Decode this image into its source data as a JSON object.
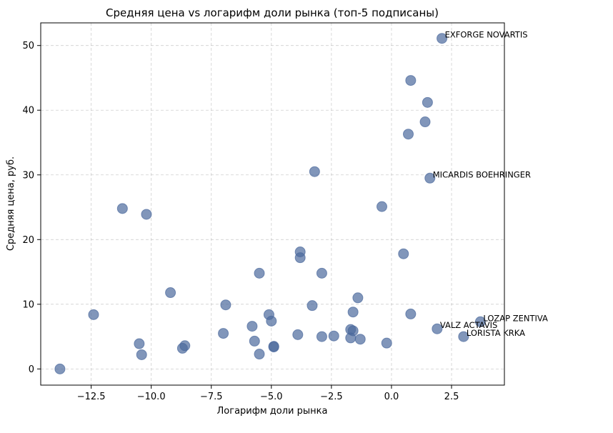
{
  "chart_data": {
    "type": "scatter",
    "title": "Средняя цена vs логарифм доли рынка (топ-5 подписаны)",
    "xlabel": "Логарифм доли рынка",
    "ylabel": "Средняя цена, руб.",
    "xlim": [
      -14.6,
      4.7
    ],
    "ylim": [
      -2.5,
      53.5
    ],
    "xticks": [
      -12.5,
      -10.0,
      -7.5,
      -5.0,
      -2.5,
      0.0,
      2.5
    ],
    "xtick_labels": [
      "−12.5",
      "−10.0",
      "−7.5",
      "−5.0",
      "−2.5",
      "0.0",
      "2.5"
    ],
    "yticks": [
      0,
      10,
      20,
      30,
      40,
      50
    ],
    "ytick_labels": [
      "0",
      "10",
      "20",
      "30",
      "40",
      "50"
    ],
    "grid": true,
    "color": "#4c6a9c",
    "points": [
      {
        "x": -13.8,
        "y": 0.0
      },
      {
        "x": -12.4,
        "y": 8.4
      },
      {
        "x": -11.2,
        "y": 24.8
      },
      {
        "x": -10.5,
        "y": 3.9
      },
      {
        "x": -10.4,
        "y": 2.2
      },
      {
        "x": -10.2,
        "y": 23.9
      },
      {
        "x": -9.2,
        "y": 11.8
      },
      {
        "x": -8.7,
        "y": 3.2
      },
      {
        "x": -8.6,
        "y": 3.6
      },
      {
        "x": -7.0,
        "y": 5.5
      },
      {
        "x": -6.9,
        "y": 9.9
      },
      {
        "x": -5.8,
        "y": 6.6
      },
      {
        "x": -5.7,
        "y": 4.3
      },
      {
        "x": -5.5,
        "y": 14.8
      },
      {
        "x": -5.5,
        "y": 2.3
      },
      {
        "x": -5.1,
        "y": 8.4
      },
      {
        "x": -5.0,
        "y": 7.4
      },
      {
        "x": -4.9,
        "y": 3.4
      },
      {
        "x": -4.9,
        "y": 3.5
      },
      {
        "x": -3.9,
        "y": 5.3
      },
      {
        "x": -3.8,
        "y": 18.1
      },
      {
        "x": -3.8,
        "y": 17.2
      },
      {
        "x": -3.3,
        "y": 9.8
      },
      {
        "x": -3.2,
        "y": 30.5
      },
      {
        "x": -2.9,
        "y": 14.8
      },
      {
        "x": -2.9,
        "y": 5.0
      },
      {
        "x": -2.4,
        "y": 5.1
      },
      {
        "x": -1.7,
        "y": 6.1
      },
      {
        "x": -1.7,
        "y": 4.8
      },
      {
        "x": -1.6,
        "y": 8.8
      },
      {
        "x": -1.6,
        "y": 5.9
      },
      {
        "x": -1.4,
        "y": 11.0
      },
      {
        "x": -1.3,
        "y": 4.6
      },
      {
        "x": -0.4,
        "y": 25.1
      },
      {
        "x": -0.2,
        "y": 4.0
      },
      {
        "x": 0.5,
        "y": 17.8
      },
      {
        "x": 0.7,
        "y": 36.3
      },
      {
        "x": 0.8,
        "y": 44.6
      },
      {
        "x": 0.8,
        "y": 8.5
      },
      {
        "x": 1.4,
        "y": 38.2
      },
      {
        "x": 1.5,
        "y": 41.2
      },
      {
        "x": 1.6,
        "y": 29.5
      },
      {
        "x": 1.9,
        "y": 6.2
      },
      {
        "x": 2.1,
        "y": 51.1
      },
      {
        "x": 3.0,
        "y": 5.0
      },
      {
        "x": 3.7,
        "y": 7.3
      }
    ],
    "annotations": [
      {
        "text": "EXFORGE NOVARTIS",
        "x": 2.1,
        "y": 51.1
      },
      {
        "text": "MICARDIS BOEHRINGER",
        "x": 1.6,
        "y": 29.5
      },
      {
        "text": "LOZAP ZENTIVA",
        "x": 3.7,
        "y": 7.3
      },
      {
        "text": "VALZ ACTAVIS",
        "x": 1.9,
        "y": 6.2
      },
      {
        "text": "LORISTA KRKA",
        "x": 3.0,
        "y": 5.0
      }
    ]
  }
}
